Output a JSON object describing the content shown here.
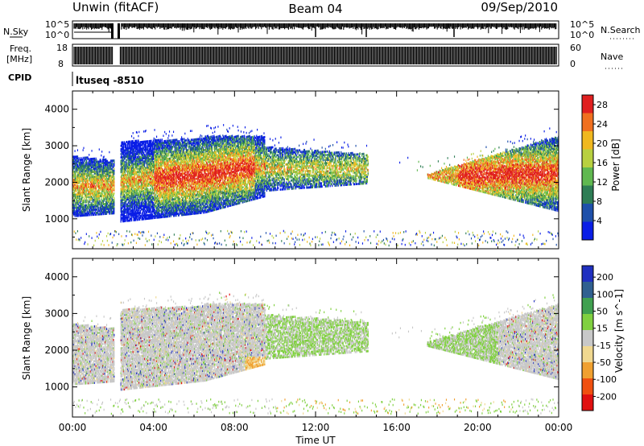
{
  "header": {
    "site": "Unwin (fitACF)",
    "beam": "Beam 04",
    "date": "09/Sep/2010"
  },
  "strip_labels": {
    "nsky": "N.Sky",
    "nsky_top": "10^5",
    "nsky_bottom": "10^0",
    "nsearch": "N.Search",
    "nsearch_top": "10^5",
    "nsearch_bottom": "10^0",
    "freq_line1": "Freq.",
    "freq_line2": "[MHz]",
    "freq_top": "18",
    "freq_bottom": "8",
    "nave": "Nave",
    "nave_top": "60",
    "nave_bottom": "0",
    "cpid": "CPID",
    "cpid_value": "ltuseq -8510"
  },
  "colors": {
    "power": [
      "#0a1ee6",
      "#1e50aa",
      "#2e7d55",
      "#60b850",
      "#b8d040",
      "#f0b820",
      "#f07020",
      "#e02020"
    ],
    "velocity": [
      "#e01010",
      "#f05010",
      "#f0a030",
      "#f0d890",
      "#c8c8c8",
      "#80d040",
      "#40a050",
      "#306090",
      "#2030c0"
    ]
  },
  "chart_data": [
    {
      "type": "heatmap",
      "title": "Power",
      "xlabel": "",
      "ylabel": "Slant Range [km]",
      "x_ticks": [
        "00:00",
        "04:00",
        "08:00",
        "12:00",
        "16:00",
        "20:00",
        "00:00"
      ],
      "y_ticks": [
        "1000",
        "2000",
        "3000",
        "4000"
      ],
      "xlim_hours": [
        0,
        24
      ],
      "ylim_km": [
        180,
        4500
      ],
      "colorbar": {
        "label": "Power [dB]",
        "ticks": [
          "4",
          "8",
          "12",
          "16",
          "20",
          "24",
          "28"
        ],
        "range": [
          0,
          30
        ]
      },
      "regions": [
        {
          "t": [
            0.0,
            2.1
          ],
          "r": [
            1100,
            2800
          ],
          "level": "low-mid"
        },
        {
          "t": [
            2.4,
            9.5
          ],
          "r": [
            900,
            3200
          ],
          "level": "mid-high"
        },
        {
          "t": [
            9.5,
            14.5
          ],
          "r": [
            1900,
            2900
          ],
          "level": "low-mid"
        },
        {
          "t": [
            17.5,
            24.0
          ],
          "r": [
            1000,
            3000
          ],
          "level": "mid-high"
        }
      ]
    },
    {
      "type": "heatmap",
      "title": "Velocity",
      "xlabel": "Time UT",
      "ylabel": "Slant Range [km]",
      "x_ticks": [
        "00:00",
        "04:00",
        "08:00",
        "12:00",
        "16:00",
        "20:00",
        "00:00"
      ],
      "y_ticks": [
        "1000",
        "2000",
        "3000",
        "4000"
      ],
      "xlim_hours": [
        0,
        24
      ],
      "ylim_km": [
        180,
        4500
      ],
      "colorbar": {
        "label": "Velocity [m s^-1]",
        "ticks": [
          "200",
          "100",
          "50",
          "15",
          "-15",
          "-50",
          "-100",
          "-200"
        ],
        "range": [
          -250,
          250
        ]
      },
      "regions": [
        {
          "t": [
            0.0,
            9.5
          ],
          "r": [
            900,
            3200
          ],
          "dominant": "-15 to 15"
        },
        {
          "t": [
            9.5,
            14.5
          ],
          "r": [
            1900,
            2900
          ],
          "dominant": "15 to 50"
        },
        {
          "t": [
            17.5,
            24.0
          ],
          "r": [
            1000,
            3000
          ],
          "dominant": "-15 to 50"
        }
      ]
    }
  ]
}
